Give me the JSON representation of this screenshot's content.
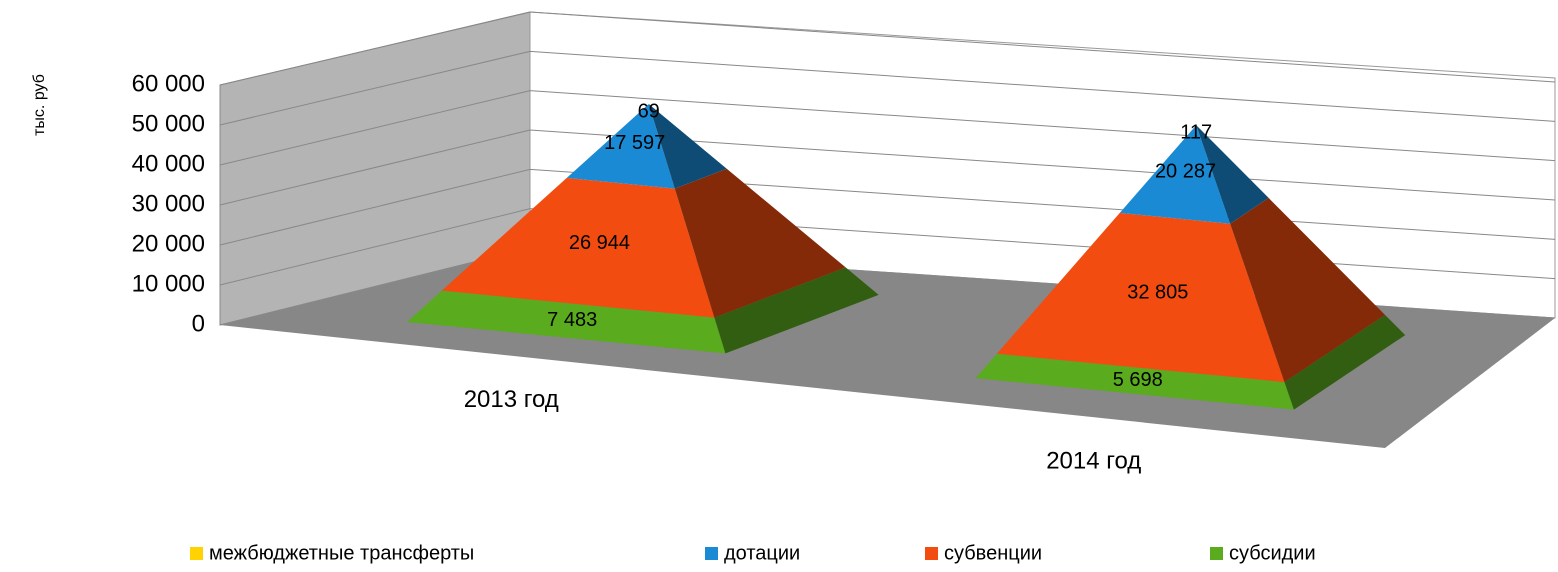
{
  "chart_data": {
    "type": "pyramid3d",
    "y_label": "тыс. руб",
    "categories": [
      "2013 год",
      "2014 год"
    ],
    "series": [
      {
        "name": "межбюджетные трансферты",
        "color": "#ffd200",
        "values": [
          69,
          117
        ]
      },
      {
        "name": "дотации",
        "color": "#1a8ad4",
        "values": [
          17597,
          20287
        ],
        "value_labels": [
          "17 597",
          "20 287"
        ]
      },
      {
        "name": "субвенции",
        "color": "#f24c10",
        "values": [
          26944,
          32805
        ],
        "value_labels": [
          "26 944",
          "32 805"
        ]
      },
      {
        "name": "субсидии",
        "color": "#5aab1e",
        "values": [
          7483,
          5698
        ],
        "value_labels": [
          "7 483",
          "5 698"
        ]
      }
    ],
    "ylim": [
      0,
      60000
    ],
    "yticks": [
      0,
      {
        "value": 10000,
        "label": "10 000"
      },
      {
        "value": 20000,
        "label": "20 000"
      },
      {
        "value": 30000,
        "label": "30 000"
      },
      {
        "value": 40000,
        "label": "40 000"
      },
      {
        "value": 50000,
        "label": "50 000"
      },
      {
        "value": 60000,
        "label": "60 000"
      }
    ],
    "grid": true,
    "legend": "bottom"
  }
}
